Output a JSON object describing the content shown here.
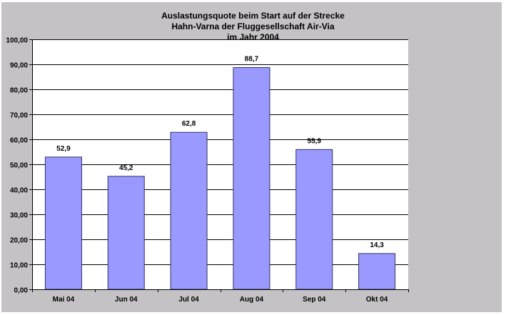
{
  "chart_data": {
    "type": "bar",
    "title_lines": [
      "Auslastungsquote beim Start auf der Strecke",
      "Hahn-Varna der Fluggesellschaft Air-Via",
      "im Jahr 2004"
    ],
    "categories": [
      "Mai 04",
      "Jun 04",
      "Jul 04",
      "Aug 04",
      "Sep 04",
      "Okt 04"
    ],
    "values": [
      52.9,
      45.2,
      62.8,
      88.7,
      55.9,
      14.3
    ],
    "data_labels": [
      "52,9",
      "45,2",
      "62,8",
      "88,7",
      "55,9",
      "14,3"
    ],
    "y_ticks": [
      "0,00",
      "10,00",
      "20,00",
      "30,00",
      "40,00",
      "50,00",
      "60,00",
      "70,00",
      "80,00",
      "90,00",
      "100,00"
    ],
    "ylim": [
      0,
      100
    ],
    "grid": true,
    "legend": "none",
    "xlabel": "",
    "ylabel": "",
    "colors": {
      "bar": "#9999ff",
      "bar_border": "#333366",
      "background": "#c4c2c4",
      "plot": "#ffffff"
    }
  }
}
